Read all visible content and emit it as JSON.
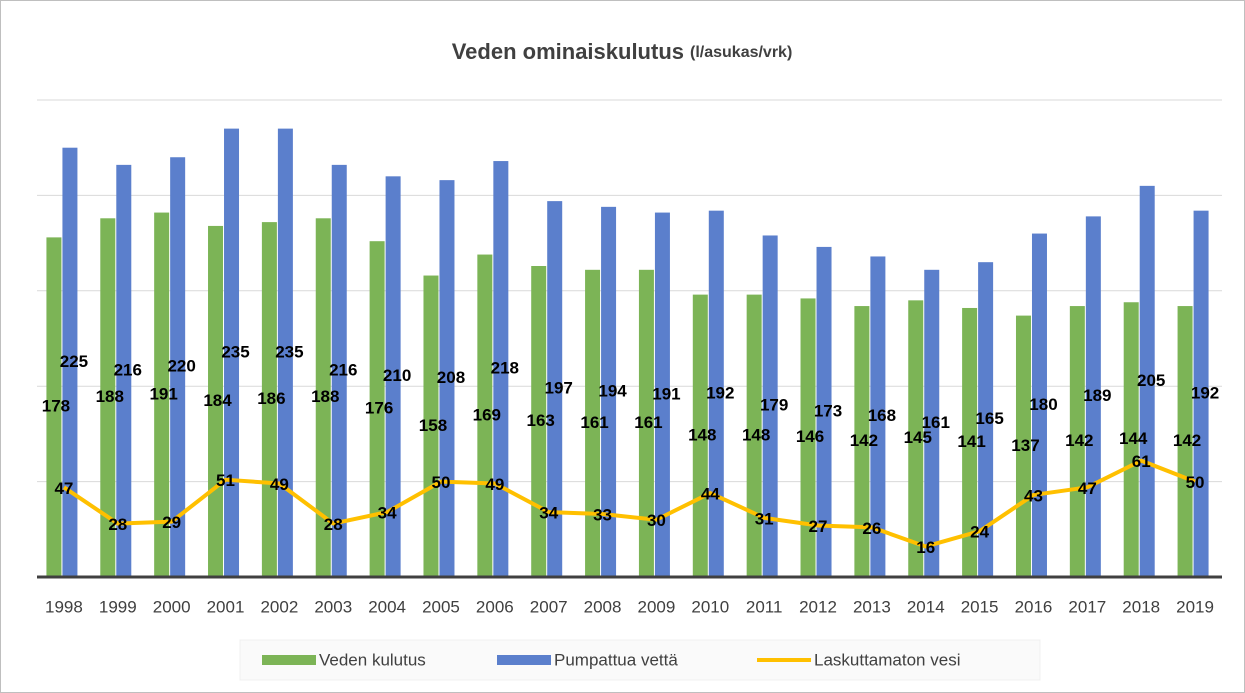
{
  "chart_data": {
    "type": "bar_line",
    "title": "Veden ominaiskulutus",
    "title_units": "(l/asukas/vrk)",
    "categories": [
      "1998",
      "1999",
      "2000",
      "2001",
      "2002",
      "2003",
      "2004",
      "2005",
      "2006",
      "2007",
      "2008",
      "2009",
      "2010",
      "2011",
      "2012",
      "2013",
      "2014",
      "2015",
      "2016",
      "2017",
      "2018",
      "2019"
    ],
    "series": [
      {
        "name": "Veden kulutus",
        "type": "bar",
        "color": "#7cb456",
        "values": [
          178,
          188,
          191,
          184,
          186,
          188,
          176,
          158,
          169,
          163,
          161,
          161,
          148,
          148,
          146,
          142,
          145,
          141,
          137,
          142,
          144,
          142
        ]
      },
      {
        "name": "Pumpattua vettä",
        "type": "bar",
        "color": "#5b7fcc",
        "values": [
          225,
          216,
          220,
          235,
          235,
          216,
          210,
          208,
          218,
          197,
          194,
          191,
          192,
          179,
          173,
          168,
          161,
          165,
          180,
          189,
          205,
          192
        ]
      },
      {
        "name": "Laskuttamaton vesi",
        "type": "line",
        "color": "#ffc000",
        "values": [
          47,
          28,
          29,
          51,
          49,
          28,
          34,
          50,
          49,
          34,
          33,
          30,
          44,
          31,
          27,
          26,
          16,
          24,
          43,
          47,
          61,
          50
        ]
      }
    ],
    "ylim": [
      0,
      250
    ],
    "yticks": [
      0,
      50,
      100,
      150,
      200,
      250
    ],
    "grid": true,
    "legend": "bottom"
  }
}
